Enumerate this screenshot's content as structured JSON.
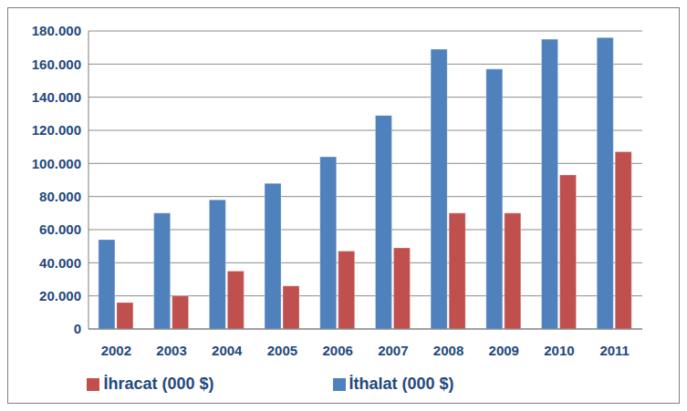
{
  "chart_data": {
    "type": "bar",
    "categories": [
      "2002",
      "2003",
      "2004",
      "2005",
      "2006",
      "2007",
      "2008",
      "2009",
      "2010",
      "2011"
    ],
    "series": [
      {
        "name": "İthalat (000 $)",
        "color": "#4f81bd",
        "values": [
          54000,
          70000,
          78000,
          88000,
          104000,
          129000,
          169000,
          157000,
          175000,
          176000
        ]
      },
      {
        "name": "İhracat (000 $)",
        "color": "#c0504d",
        "values": [
          16000,
          20000,
          35000,
          26000,
          47000,
          49000,
          70000,
          70000,
          93000,
          107000
        ]
      }
    ],
    "ylim": [
      0,
      180000
    ],
    "yticks": [
      {
        "value": 0,
        "label": "0"
      },
      {
        "value": 20000,
        "label": "20.000"
      },
      {
        "value": 40000,
        "label": "40.000"
      },
      {
        "value": 60000,
        "label": "60.000"
      },
      {
        "value": 80000,
        "label": "80.000"
      },
      {
        "value": 100000,
        "label": "100.000"
      },
      {
        "value": 120000,
        "label": "120.000"
      },
      {
        "value": 140000,
        "label": "140.000"
      },
      {
        "value": 160000,
        "label": "160.000"
      },
      {
        "value": 180000,
        "label": "180.000"
      }
    ],
    "grid": true,
    "legend": "bottom"
  }
}
